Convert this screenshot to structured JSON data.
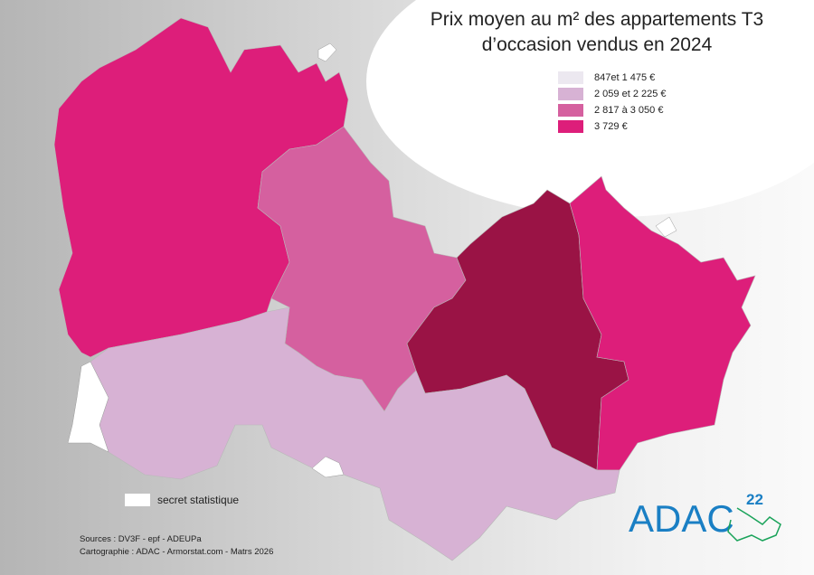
{
  "title_line1": "Prix moyen au m² des appartements T3",
  "title_line2": "d’occasion vendus en 2024",
  "legend": [
    {
      "label": "847et 1 475 €",
      "color": "#ece8f0"
    },
    {
      "label": "2 059 et 2 225 €",
      "color": "#d7b2d4"
    },
    {
      "label": "2 817 à 3 050 €",
      "color": "#d5609f"
    },
    {
      "label": "3 729 €",
      "color": "#dd1e7a"
    }
  ],
  "unlisted_region_color": "#9a1345",
  "secret_label": "secret  statistique",
  "sources": "Sources : DV3F - epf - ADEUPa",
  "cartography": "Cartographie : ADAC - Armorstat.com - Matrs 2026",
  "logo_text": "ADAC",
  "logo_superscript": "22"
}
